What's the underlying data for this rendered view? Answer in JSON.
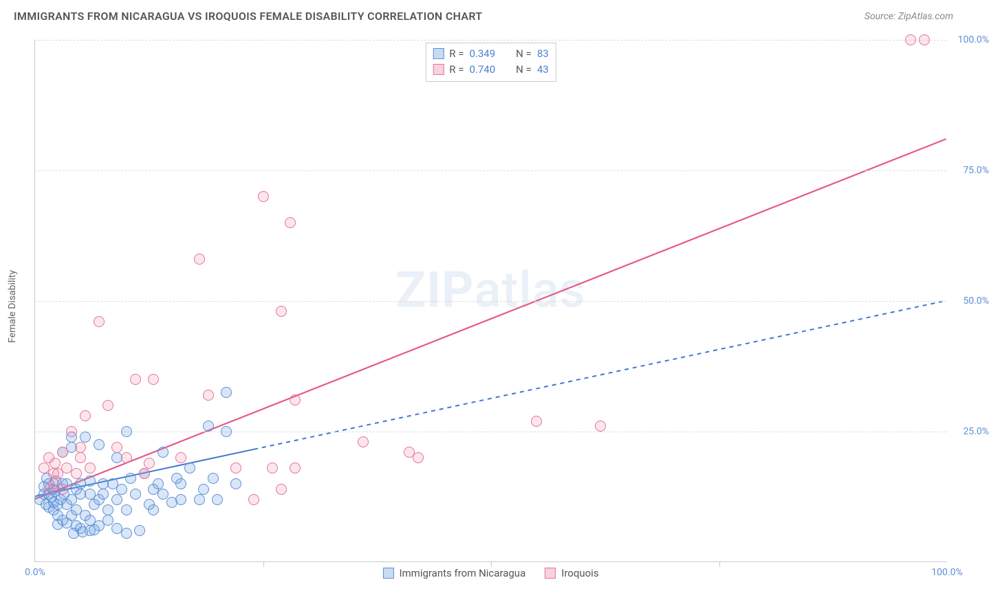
{
  "title": "IMMIGRANTS FROM NICARAGUA VS IROQUOIS FEMALE DISABILITY CORRELATION CHART",
  "source": "Source: ZipAtlas.com",
  "ylabel": "Female Disability",
  "watermark_zip": "ZIP",
  "watermark_atlas": "atlas",
  "xlim": [
    0,
    100
  ],
  "ylim": [
    0,
    100
  ],
  "x_ticks": [
    0,
    25,
    50,
    75,
    100
  ],
  "y_ticks": [
    25,
    50,
    75,
    100
  ],
  "x_tick_labels": {
    "0": "0.0%",
    "100": "100.0%"
  },
  "y_tick_labels": {
    "25": "25.0%",
    "50": "50.0%",
    "75": "75.0%",
    "100": "100.0%"
  },
  "grid_color": "#dcdcdc",
  "axis_color": "#c9c9c9",
  "background_color": "#ffffff",
  "stats": [
    {
      "swatch": "b",
      "r_label": "R =",
      "r_value": "0.349",
      "n_label": "N =",
      "n_value": "83"
    },
    {
      "swatch": "p",
      "r_label": "R =",
      "r_value": "0.740",
      "n_label": "N =",
      "n_value": "43"
    }
  ],
  "legend": [
    {
      "swatch": "b",
      "label": "Immigrants from Nicaragua"
    },
    {
      "swatch": "p",
      "label": "Iroquois"
    }
  ],
  "series_blue": {
    "color_fill": "rgba(120,165,225,0.28)",
    "color_stroke": "#5c8fd6",
    "marker_radius_px": 8,
    "trend": {
      "x1": 0,
      "y1": 12.5,
      "x2": 100,
      "y2": 50,
      "solid_until_x": 24,
      "stroke": "#3f77cf",
      "width": 2,
      "dash": "6 6"
    },
    "points": [
      [
        0.5,
        12
      ],
      [
        1,
        13
      ],
      [
        1,
        14.5
      ],
      [
        1.2,
        11
      ],
      [
        1.3,
        16
      ],
      [
        1.5,
        10.5
      ],
      [
        1.5,
        13
      ],
      [
        1.5,
        15
      ],
      [
        1.8,
        12.5
      ],
      [
        2,
        14
      ],
      [
        2,
        10
      ],
      [
        2,
        11.5
      ],
      [
        2.2,
        13.5
      ],
      [
        2.3,
        15.5
      ],
      [
        2.5,
        9
      ],
      [
        2.5,
        11
      ],
      [
        2.5,
        7.2
      ],
      [
        2.8,
        12
      ],
      [
        3,
        8
      ],
      [
        3,
        15
      ],
      [
        3,
        21
      ],
      [
        3.2,
        13
      ],
      [
        3.5,
        11
      ],
      [
        3.5,
        15
      ],
      [
        3.5,
        7.5
      ],
      [
        4,
        12
      ],
      [
        4,
        9
      ],
      [
        4,
        22
      ],
      [
        4,
        24
      ],
      [
        4.5,
        14
      ],
      [
        4.5,
        10
      ],
      [
        4.5,
        7
      ],
      [
        5,
        13
      ],
      [
        5,
        15
      ],
      [
        5,
        6.5
      ],
      [
        5.5,
        9
      ],
      [
        5.5,
        24
      ],
      [
        6,
        6
      ],
      [
        6,
        8
      ],
      [
        6,
        13
      ],
      [
        6,
        15.5
      ],
      [
        6.5,
        11
      ],
      [
        7,
        7
      ],
      [
        7,
        12
      ],
      [
        7,
        22.5
      ],
      [
        7.5,
        15
      ],
      [
        7.5,
        13
      ],
      [
        8,
        8
      ],
      [
        8,
        10
      ],
      [
        8.5,
        15
      ],
      [
        9,
        6.5
      ],
      [
        9,
        12
      ],
      [
        9,
        20
      ],
      [
        9.5,
        14
      ],
      [
        10,
        5.5
      ],
      [
        10,
        10
      ],
      [
        10,
        25
      ],
      [
        10.5,
        16
      ],
      [
        11,
        13
      ],
      [
        11.5,
        6
      ],
      [
        12,
        17
      ],
      [
        12.5,
        11
      ],
      [
        13,
        10
      ],
      [
        13,
        14
      ],
      [
        13.5,
        15
      ],
      [
        14,
        13
      ],
      [
        14,
        21
      ],
      [
        15,
        11.5
      ],
      [
        15.5,
        16
      ],
      [
        16,
        12
      ],
      [
        16,
        15
      ],
      [
        17,
        18
      ],
      [
        18,
        12
      ],
      [
        18.5,
        14
      ],
      [
        19,
        26
      ],
      [
        19.5,
        16
      ],
      [
        20,
        12
      ],
      [
        21,
        25
      ],
      [
        21,
        32.5
      ],
      [
        22,
        15
      ],
      [
        4.2,
        5.5
      ],
      [
        5.2,
        5.8
      ],
      [
        6.5,
        6.2
      ]
    ]
  },
  "series_pink": {
    "color_fill": "rgba(235,130,160,0.20)",
    "color_stroke": "#e6719a",
    "marker_radius_px": 8,
    "trend": {
      "x1": 0,
      "y1": 12,
      "x2": 100,
      "y2": 81,
      "stroke": "#e55a88",
      "width": 2.2
    },
    "points": [
      [
        1,
        18
      ],
      [
        1.5,
        14
      ],
      [
        1.5,
        20
      ],
      [
        2,
        17
      ],
      [
        2,
        15
      ],
      [
        2.2,
        19
      ],
      [
        2.5,
        17
      ],
      [
        3,
        21
      ],
      [
        3,
        14
      ],
      [
        3.5,
        18
      ],
      [
        4,
        25
      ],
      [
        4.5,
        17
      ],
      [
        5,
        20
      ],
      [
        5,
        22
      ],
      [
        5.5,
        28
      ],
      [
        6,
        18
      ],
      [
        7,
        46
      ],
      [
        8,
        30
      ],
      [
        9,
        22
      ],
      [
        10,
        20
      ],
      [
        11,
        35
      ],
      [
        12,
        17
      ],
      [
        12.5,
        19
      ],
      [
        13,
        35
      ],
      [
        16,
        20
      ],
      [
        18,
        58
      ],
      [
        19,
        32
      ],
      [
        22,
        18
      ],
      [
        24,
        12
      ],
      [
        25,
        70
      ],
      [
        26,
        18
      ],
      [
        27,
        48
      ],
      [
        27,
        14
      ],
      [
        28.5,
        31
      ],
      [
        36,
        23
      ],
      [
        41,
        21
      ],
      [
        42,
        20
      ],
      [
        55,
        27
      ],
      [
        62,
        26
      ],
      [
        96,
        100
      ],
      [
        97.5,
        100
      ],
      [
        28,
        65
      ],
      [
        28.5,
        18
      ]
    ]
  }
}
